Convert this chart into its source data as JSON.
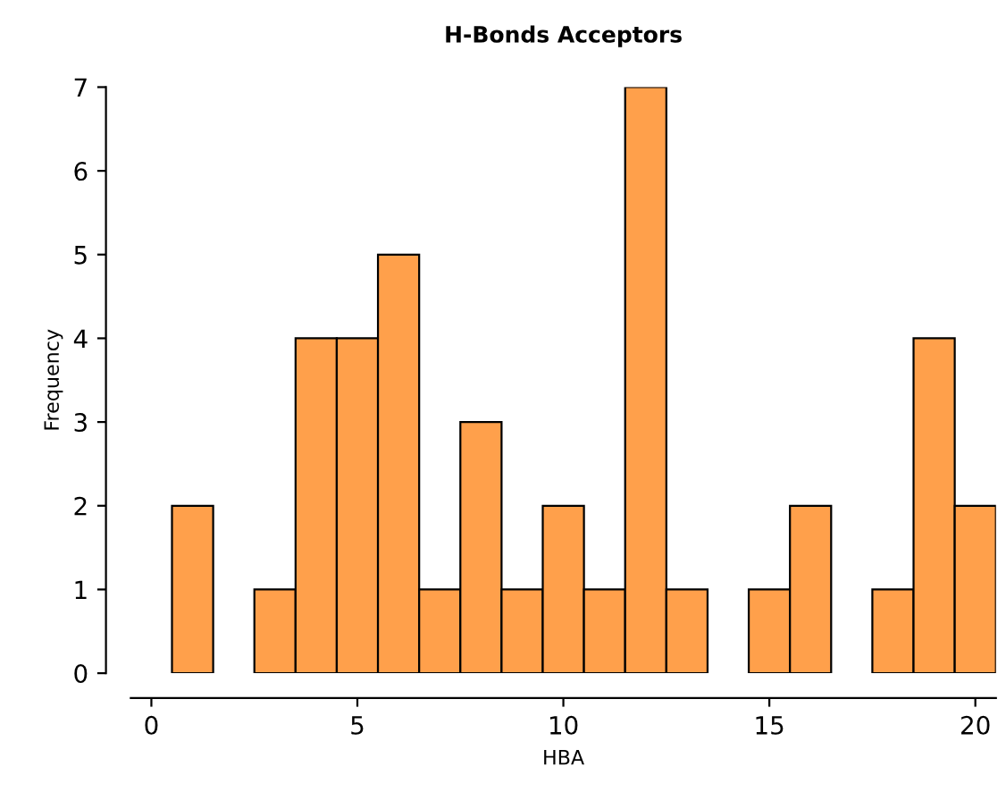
{
  "chart_data": {
    "type": "histogram",
    "title": "H-Bonds Acceptors",
    "xlabel": "HBA",
    "ylabel": "Frequency",
    "bins": [
      0.5,
      1.5,
      2.5,
      3.5,
      4.5,
      5.5,
      6.5,
      7.5,
      8.5,
      9.5,
      10.5,
      11.5,
      12.5,
      13.5,
      14.5,
      15.5,
      16.5,
      17.5,
      18.5,
      19.5,
      20.5
    ],
    "values": [
      2,
      0,
      1,
      4,
      4,
      5,
      1,
      3,
      1,
      2,
      1,
      7,
      1,
      0,
      1,
      2,
      0,
      1,
      4,
      2
    ],
    "color": "#ffa04b",
    "xlim": [
      -0.5,
      20.5
    ],
    "ylim": [
      0,
      7
    ],
    "xticks": [
      0,
      5,
      10,
      15,
      20
    ],
    "yticks": [
      0,
      1,
      2,
      3,
      4,
      5,
      6,
      7
    ],
    "grid": false
  }
}
